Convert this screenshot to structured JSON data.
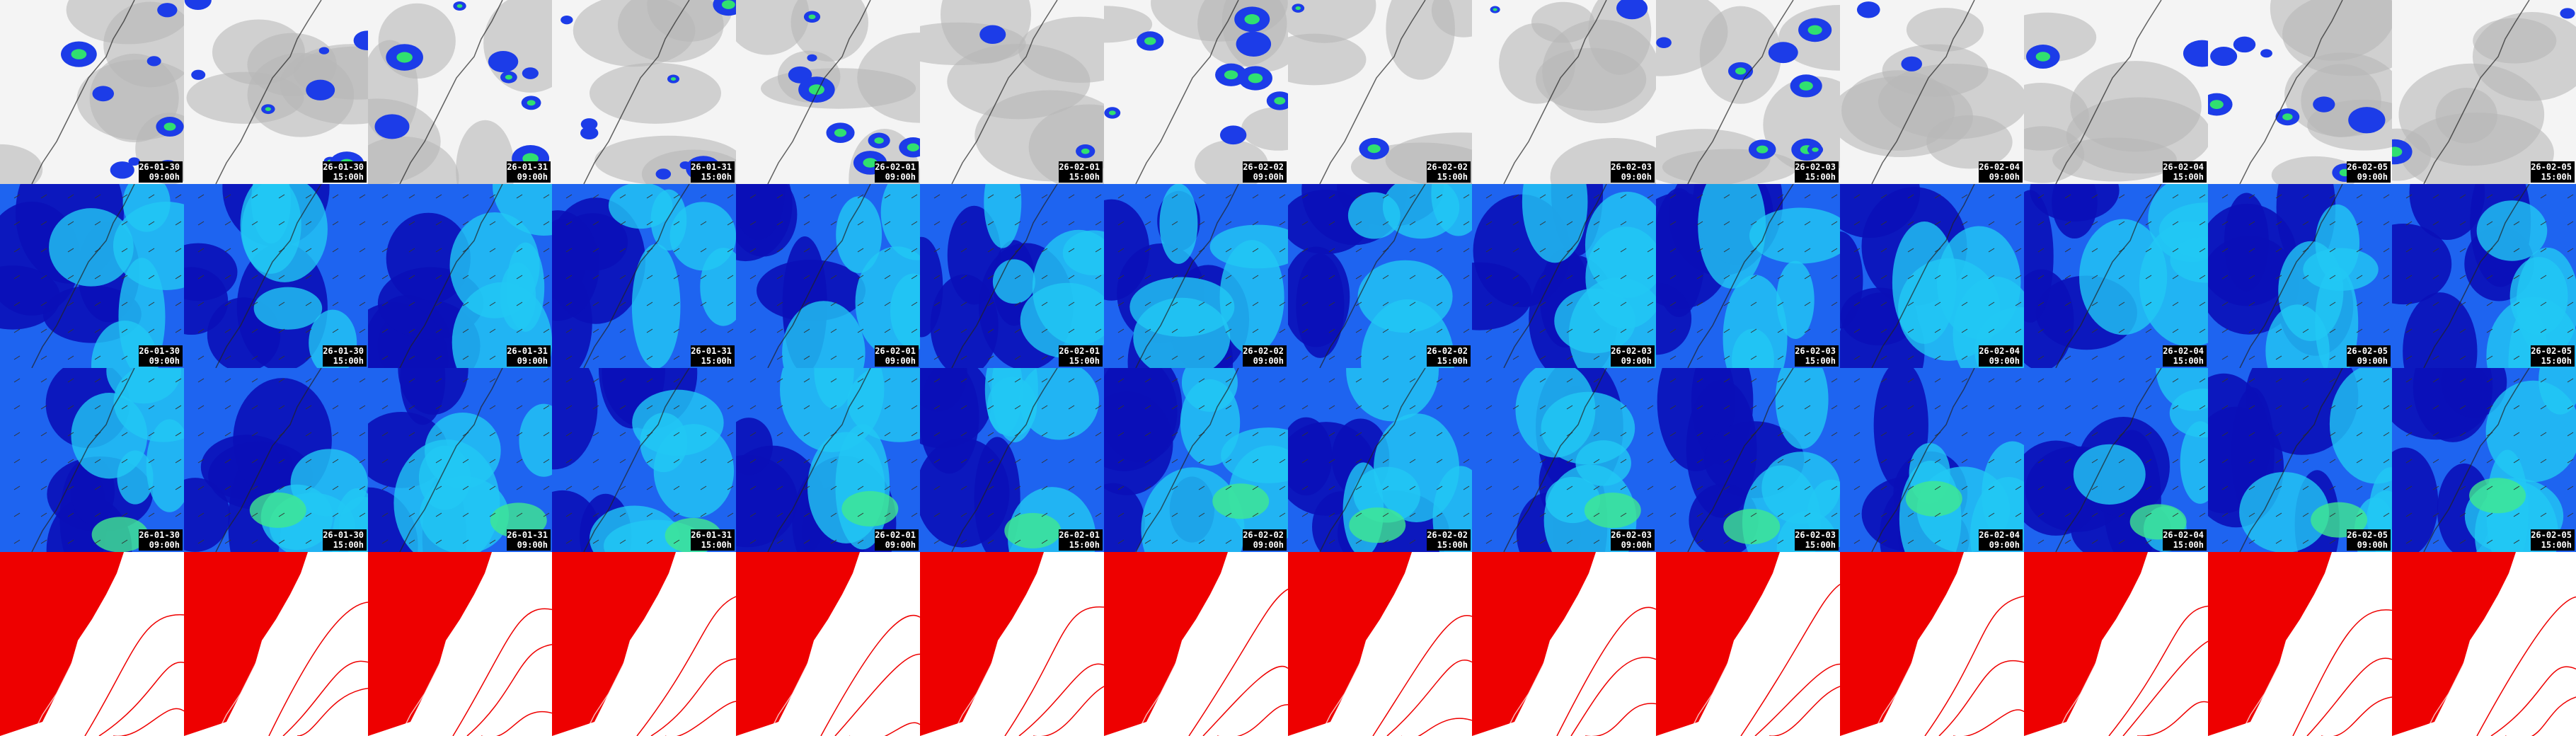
{
  "frames": [
    {
      "date": "26-01-30",
      "time": "09:00h"
    },
    {
      "date": "26-01-30",
      "time": "15:00h"
    },
    {
      "date": "26-01-31",
      "time": "09:00h"
    },
    {
      "date": "26-01-31",
      "time": "15:00h"
    },
    {
      "date": "26-02-01",
      "time": "09:00h"
    },
    {
      "date": "26-02-01",
      "time": "15:00h"
    },
    {
      "date": "26-02-02",
      "time": "09:00h"
    },
    {
      "date": "26-02-02",
      "time": "15:00h"
    },
    {
      "date": "26-02-03",
      "time": "09:00h"
    },
    {
      "date": "26-02-03",
      "time": "15:00h"
    },
    {
      "date": "26-02-04",
      "time": "09:00h"
    },
    {
      "date": "26-02-04",
      "time": "15:00h"
    },
    {
      "date": "26-02-05",
      "time": "09:00h"
    },
    {
      "date": "26-02-05",
      "time": "15:00h"
    }
  ]
}
